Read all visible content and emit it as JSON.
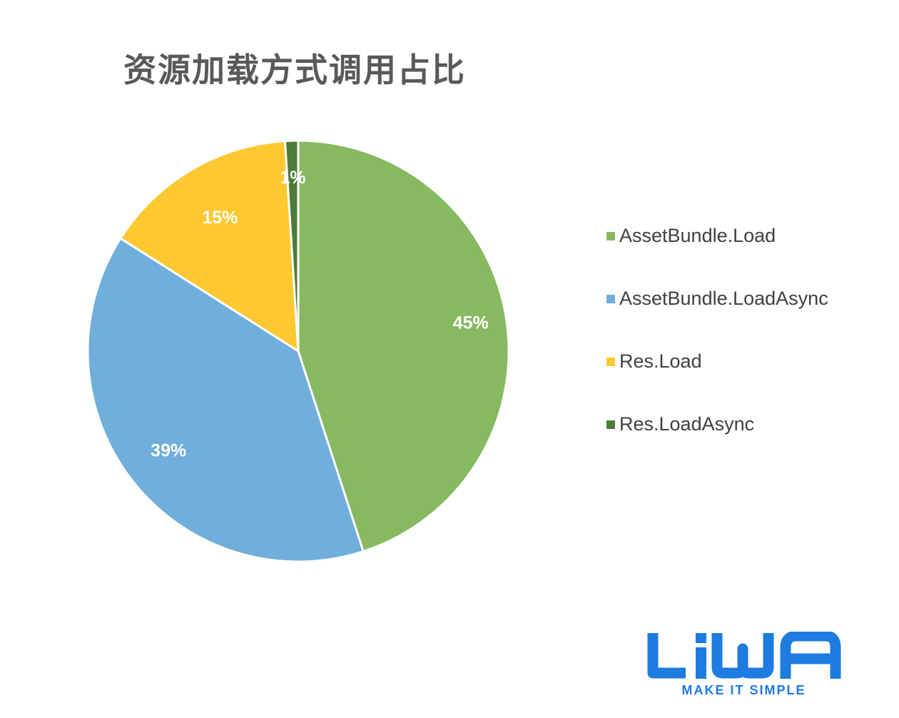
{
  "chart_data": {
    "type": "pie",
    "title": "资源加载方式调用占比",
    "categories": [
      "AssetBundle.Load",
      "AssetBundle.LoadAsync",
      "Res.Load",
      "Res.LoadAsync"
    ],
    "values": [
      45,
      39,
      15,
      1
    ],
    "data_labels": [
      "45%",
      "39%",
      "15%",
      "1%"
    ],
    "colors": [
      "#87b961",
      "#70aedb",
      "#fec830",
      "#4d7b3a"
    ],
    "legend_position": "right"
  },
  "logo": {
    "wordmark": "LiWA",
    "tagline": "MAKE IT SIMPLE",
    "color": "#1e7be0"
  }
}
